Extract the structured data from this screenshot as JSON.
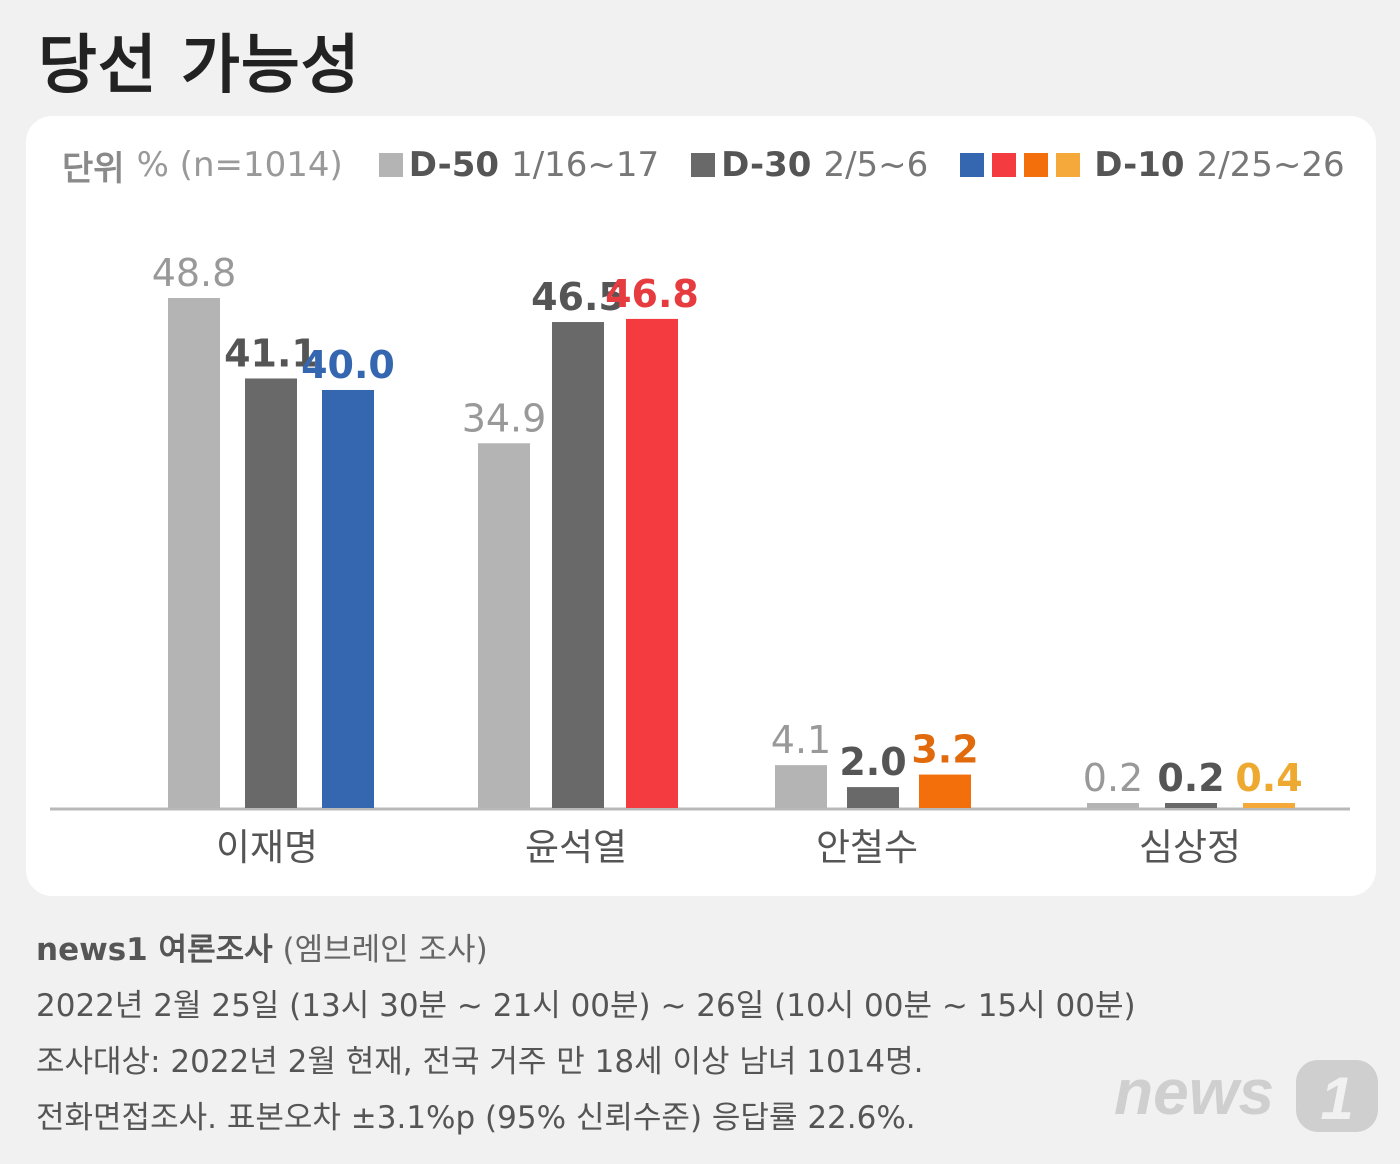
{
  "title": "당선 가능성",
  "legend": {
    "unit_label": "단위",
    "unit_value": "% (n=1014)",
    "series": [
      {
        "name": "D-50",
        "date": "1/16~17",
        "colors": [
          "#b4b4b4"
        ]
      },
      {
        "name": "D-30",
        "date": "2/5~6",
        "colors": [
          "#696969"
        ]
      },
      {
        "name": "D-10",
        "date": "2/25~26",
        "colors": [
          "#3566b0",
          "#f33b40",
          "#f26f0c",
          "#f4a93a"
        ]
      }
    ]
  },
  "chart_data": {
    "type": "bar",
    "categories": [
      "이재명",
      "윤석열",
      "안철수",
      "심상정"
    ],
    "series": [
      {
        "name": "D-50",
        "values": [
          48.8,
          34.9,
          4.1,
          0.2
        ]
      },
      {
        "name": "D-30",
        "values": [
          41.1,
          46.5,
          2.0,
          0.2
        ]
      },
      {
        "name": "D-10",
        "values": [
          40.0,
          46.8,
          3.2,
          0.4
        ]
      }
    ],
    "value_labels": [
      [
        "48.8",
        "34.9",
        "4.1",
        "0.2"
      ],
      [
        "41.1",
        "46.5",
        "2.0",
        "0.2"
      ],
      [
        "40.0",
        "46.8",
        "3.2",
        "0.4"
      ]
    ],
    "colors": {
      "D-50": "#b4b4b4",
      "D-30": "#696969",
      "D-10": [
        "#3566b0",
        "#f33b40",
        "#f26f0c",
        "#f4a93a"
      ]
    },
    "label_colors": {
      "D-50": "#999999",
      "D-30": "#555555",
      "D-10": [
        "#3566b0",
        "#e63b3f",
        "#e06a0c",
        "#eeaa30"
      ]
    },
    "ylim": [
      0,
      50
    ],
    "grid": false
  },
  "footer": {
    "source_name": "news1 여론조사",
    "source_org": "(엠브레인 조사)",
    "line1": "2022년 2월 25일 (13시 30분 ~ 21시 00분) ~ 26일 (10시 00분 ~ 15시 00분)",
    "line2": "조사대상: 2022년 2월 현재, 전국 거주 만 18세 이상 남녀 1014명.",
    "line3": "전화면접조사. 표본오차 ±3.1%p (95% 신뢰수준) 응답률 22.6%."
  },
  "logo": {
    "text": "news",
    "digit": "1"
  }
}
